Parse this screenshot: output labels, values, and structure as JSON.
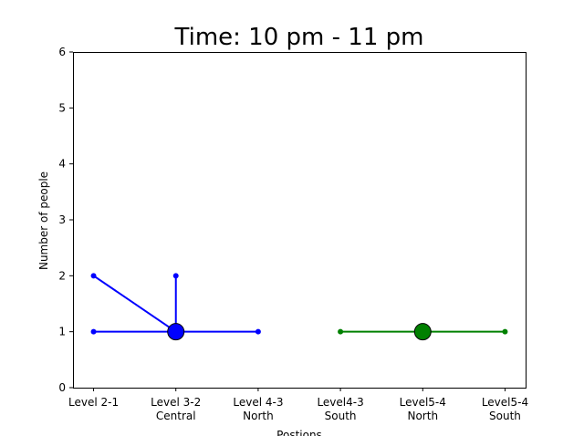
{
  "chart_data": {
    "type": "line",
    "title": "Time: 10 pm - 11 pm",
    "xlabel": "Postions",
    "ylabel": "Number of people",
    "ylim": [
      0,
      6
    ],
    "yticks": [
      0,
      1,
      2,
      3,
      4,
      5,
      6
    ],
    "categories": [
      [
        "Level 2-1"
      ],
      [
        "Level 3-2",
        "Central"
      ],
      [
        "Level 4-3",
        "North"
      ],
      [
        "Level4-3",
        "South"
      ],
      [
        "Level5-4",
        "North"
      ],
      [
        "Level5-4",
        "South"
      ]
    ],
    "grid": false,
    "legend": "none",
    "series": [
      {
        "color": "#0000ff",
        "hub": {
          "x": 1,
          "y": 1
        },
        "spokes": [
          {
            "x": 0,
            "y": 2
          },
          {
            "x": 0,
            "y": 1
          },
          {
            "x": 1,
            "y": 2
          },
          {
            "x": 2,
            "y": 1
          }
        ]
      },
      {
        "color": "#008000",
        "hub": {
          "x": 4,
          "y": 1
        },
        "spokes": [
          {
            "x": 3,
            "y": 1
          },
          {
            "x": 5,
            "y": 1
          }
        ]
      }
    ]
  }
}
